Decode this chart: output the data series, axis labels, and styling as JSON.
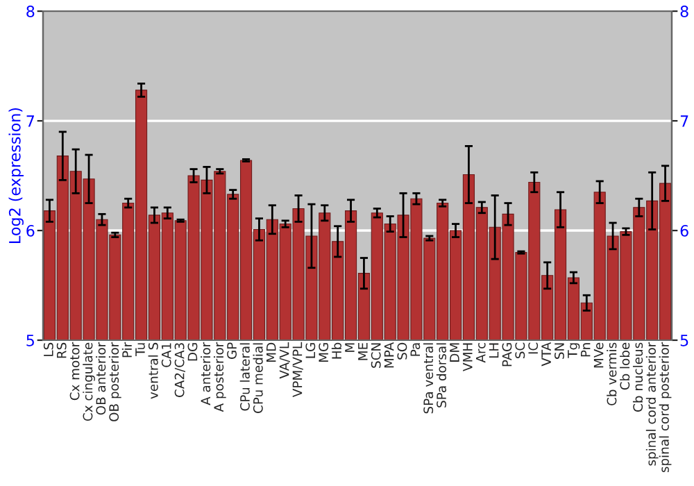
{
  "chart_data": {
    "type": "bar",
    "ylabel": "Log2 (expression)",
    "categories": [
      "LS",
      "RS",
      "Cx motor",
      "Cx cingulate",
      "OB anterior",
      "OB posterior",
      "Pir",
      "Tu",
      "ventral S",
      "CA1",
      "CA2/CA3",
      "DG",
      "A anterior",
      "A posterior",
      "GP",
      "CPu lateral",
      "CPu medial",
      "MD",
      "VA/VL",
      "VPM/VPL",
      "LG",
      "MG",
      "Hb",
      "M",
      "ME",
      "SCN",
      "MPA",
      "SO",
      "Pa",
      "SPa ventral",
      "SPa dorsal",
      "DM",
      "VMH",
      "Arc",
      "LH",
      "PAG",
      "SC",
      "IC",
      "VTA",
      "SN",
      "Tg",
      "Pn",
      "MVe",
      "Cb vermis",
      "Cb lobe",
      "Cb nucleus",
      "spinal cord anterior",
      "spinal cord posterior"
    ],
    "values": [
      6.18,
      6.68,
      6.54,
      6.47,
      6.1,
      5.96,
      6.25,
      7.28,
      6.14,
      6.16,
      6.09,
      6.5,
      6.46,
      6.54,
      6.33,
      6.64,
      6.01,
      6.1,
      6.06,
      6.2,
      5.95,
      6.16,
      5.9,
      6.18,
      5.61,
      6.16,
      6.06,
      6.14,
      6.29,
      5.93,
      6.25,
      6.0,
      6.51,
      6.21,
      6.03,
      6.15,
      5.8,
      6.44,
      5.59,
      6.19,
      5.57,
      5.34,
      6.35,
      5.95,
      5.99,
      6.21,
      6.27,
      6.43
    ],
    "errors": [
      0.1,
      0.22,
      0.2,
      0.22,
      0.05,
      0.02,
      0.04,
      0.06,
      0.07,
      0.05,
      0.01,
      0.06,
      0.12,
      0.02,
      0.04,
      0.01,
      0.1,
      0.13,
      0.03,
      0.12,
      0.29,
      0.07,
      0.14,
      0.1,
      0.14,
      0.04,
      0.07,
      0.2,
      0.05,
      0.02,
      0.03,
      0.06,
      0.26,
      0.05,
      0.29,
      0.1,
      0.01,
      0.09,
      0.12,
      0.16,
      0.05,
      0.07,
      0.1,
      0.12,
      0.03,
      0.08,
      0.26,
      0.16
    ],
    "color": "#b33232",
    "ylim": [
      5,
      8
    ],
    "yticks": [
      5,
      6,
      7,
      8
    ],
    "y2lim": [
      5,
      8
    ],
    "y2ticks": [
      5,
      6,
      7,
      8
    ],
    "grid": "y"
  }
}
